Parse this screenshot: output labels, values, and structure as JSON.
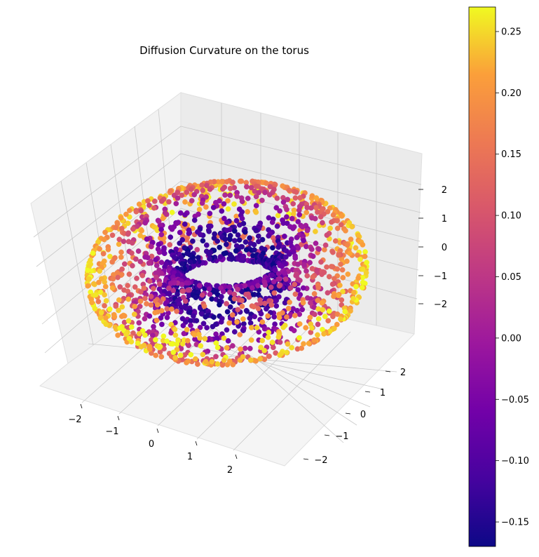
{
  "chart_data": {
    "type": "scatter",
    "projection": "3d",
    "title": "Diffusion Curvature on the torus",
    "surface": "torus",
    "torus": {
      "major_radius": 2.0,
      "minor_radius": 1.0,
      "num_points": 2000
    },
    "axes": {
      "x": {
        "label": "",
        "ticks": [
          -2,
          -1,
          0,
          1,
          2
        ],
        "tick_labels": [
          "−2",
          "−1",
          "0",
          "1",
          "2"
        ],
        "lim": [
          -3.0,
          3.0
        ]
      },
      "y": {
        "label": "",
        "ticks": [
          -2,
          -1,
          0,
          1,
          2
        ],
        "tick_labels": [
          "−2",
          "−1",
          "0",
          "1",
          "2"
        ],
        "lim": [
          -3.0,
          3.0
        ]
      },
      "z": {
        "label": "",
        "ticks": [
          -2,
          -1,
          0,
          1,
          2
        ],
        "tick_labels": [
          "−2",
          "−1",
          "0",
          "1",
          "2"
        ],
        "lim": [
          -3.0,
          3.0
        ]
      }
    },
    "grid": true,
    "colormap": "plasma",
    "colorbar": {
      "range": [
        -0.17,
        0.27
      ],
      "ticks": [
        -0.15,
        -0.1,
        -0.05,
        0.0,
        0.05,
        0.1,
        0.15,
        0.2,
        0.25
      ],
      "tick_labels": [
        "−0.15",
        "−0.10",
        "−0.05",
        "0.00",
        "0.05",
        "0.10",
        "0.15",
        "0.20",
        "0.25"
      ],
      "location": "right"
    },
    "color_by": "diffusion curvature (high on outer rim, low on inner rim)"
  }
}
